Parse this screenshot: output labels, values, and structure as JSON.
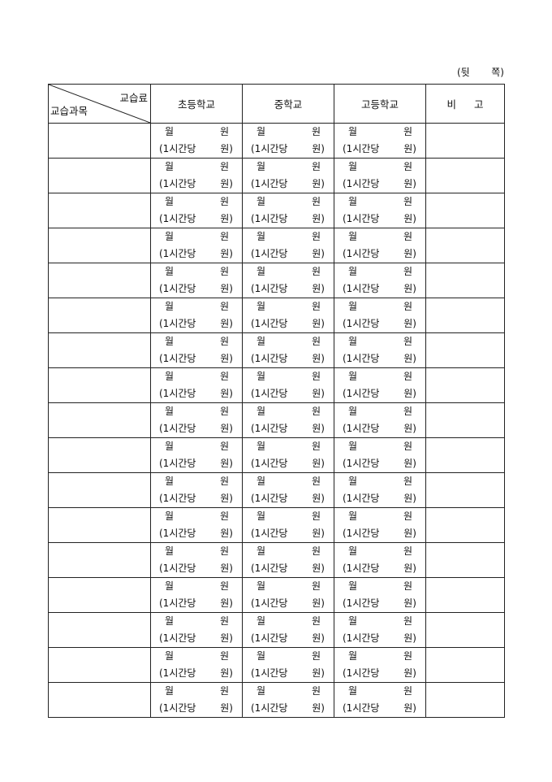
{
  "page_side": {
    "open": "(뒷",
    "close": "쪽)"
  },
  "header": {
    "fee_label": "교습료",
    "subject_label": "교습과목",
    "columns": [
      "초등학교",
      "중학교",
      "고등학교"
    ],
    "remarks": [
      "비",
      "고"
    ]
  },
  "cell_labels": {
    "month": "월",
    "won": "원",
    "hourly": "(1시간당",
    "hourly_won": "원)"
  },
  "rows": [
    {
      "subject": "",
      "remark": ""
    },
    {
      "subject": "",
      "remark": ""
    },
    {
      "subject": "",
      "remark": ""
    },
    {
      "subject": "",
      "remark": ""
    },
    {
      "subject": "",
      "remark": ""
    },
    {
      "subject": "",
      "remark": ""
    },
    {
      "subject": "",
      "remark": ""
    },
    {
      "subject": "",
      "remark": ""
    },
    {
      "subject": "",
      "remark": ""
    },
    {
      "subject": "",
      "remark": ""
    },
    {
      "subject": "",
      "remark": ""
    },
    {
      "subject": "",
      "remark": ""
    },
    {
      "subject": "",
      "remark": ""
    },
    {
      "subject": "",
      "remark": ""
    },
    {
      "subject": "",
      "remark": ""
    },
    {
      "subject": "",
      "remark": ""
    },
    {
      "subject": "",
      "remark": ""
    }
  ]
}
